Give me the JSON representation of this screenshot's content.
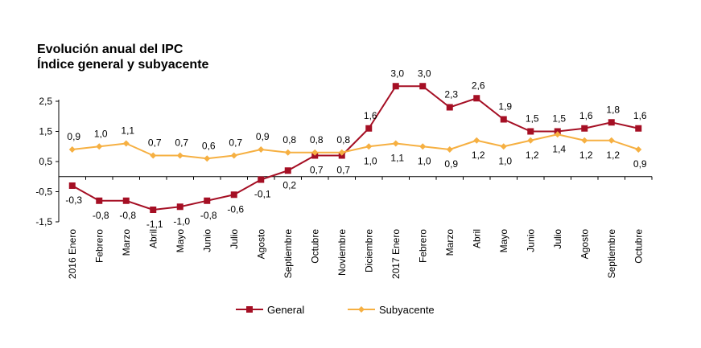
{
  "chart_data": {
    "type": "line",
    "title": "Evolución anual del IPC",
    "subtitle": "Índice general y subyacente",
    "categories": [
      "2016 Enero",
      "Febrero",
      "Marzo",
      "Abril",
      "Mayo",
      "Junio",
      "Julio",
      "Agosto",
      "Septiembre",
      "Octubre",
      "Noviembre",
      "Diciembre",
      "2017 Enero",
      "Febrero",
      "Marzo",
      "Abril",
      "Mayo",
      "Junio",
      "Julio",
      "Agosto",
      "Septiembre",
      "Octubre"
    ],
    "ylim": [
      -1.5,
      2.5
    ],
    "yticks": [
      "2,5",
      "1,5",
      "0,5",
      "-0,5",
      "-1,5"
    ],
    "grid": false,
    "legend_position": "bottom",
    "series": [
      {
        "name": "General",
        "color": "#a50f24",
        "marker": "square",
        "values": [
          -0.3,
          -0.8,
          -0.8,
          -1.1,
          -1.0,
          -0.8,
          -0.6,
          -0.1,
          0.2,
          0.7,
          0.7,
          1.6,
          3.0,
          3.0,
          2.3,
          2.6,
          1.9,
          1.5,
          1.5,
          1.6,
          1.8,
          1.6
        ],
        "labels": [
          "-0,3",
          "-0,8",
          "-0,8",
          "-1,1",
          "-1,0",
          "-0,8",
          "-0,6",
          "-0,1",
          "0,2",
          "0,7",
          "0,7",
          "1,6",
          "3,0",
          "3,0",
          "2,3",
          "2,6",
          "1,9",
          "1,5",
          "1,5",
          "1,6",
          "1,8",
          "1,6"
        ]
      },
      {
        "name": "Subyacente",
        "color": "#f6b042",
        "marker": "diamond",
        "values": [
          0.9,
          1.0,
          1.1,
          0.7,
          0.7,
          0.6,
          0.7,
          0.9,
          0.8,
          0.8,
          0.8,
          1.0,
          1.1,
          1.0,
          0.9,
          1.2,
          1.0,
          1.2,
          1.4,
          1.2,
          1.2,
          0.9
        ],
        "labels": [
          "0,9",
          "1,0",
          "1,1",
          "0,7",
          "0,7",
          "0,6",
          "0,7",
          "0,9",
          "0,8",
          "0,8",
          "0,8",
          "1,0",
          "1,1",
          "1,0",
          "0,9",
          "1,2",
          "1,0",
          "1,2",
          "1,4",
          "1,2",
          "1,2",
          "0,9"
        ]
      }
    ]
  }
}
